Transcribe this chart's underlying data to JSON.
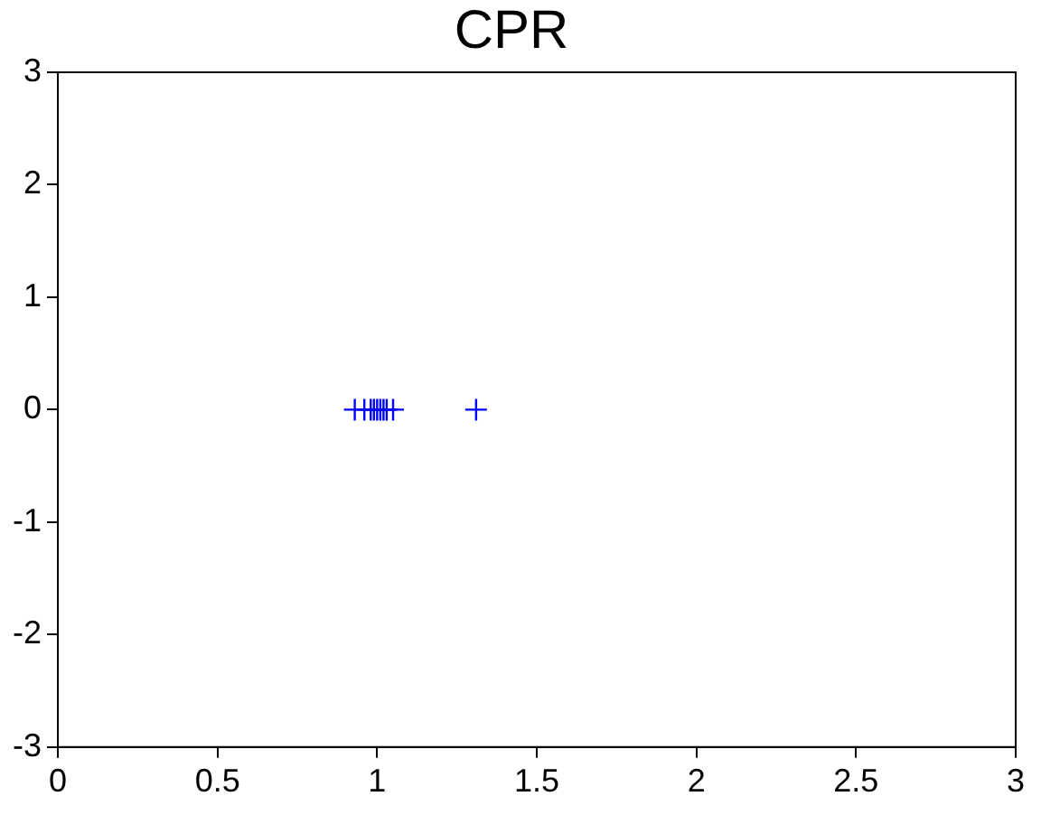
{
  "chart_data": {
    "type": "scatter",
    "title": "CPR",
    "x": [
      0.93,
      0.96,
      0.98,
      0.99,
      1.0,
      1.01,
      1.02,
      1.03,
      1.05,
      1.31
    ],
    "values": [
      0,
      0,
      0,
      0,
      0,
      0,
      0,
      0,
      0,
      0
    ],
    "color": "#0000ff",
    "marker": "cross",
    "xlim": [
      0,
      3
    ],
    "xticks": [
      0,
      0.5,
      1,
      1.5,
      2,
      2.5,
      3
    ],
    "ylim": [
      -3,
      3
    ],
    "yticks": [
      -3,
      -2,
      -1,
      0,
      1,
      2,
      3
    ],
    "grid": false,
    "legend": false
  }
}
